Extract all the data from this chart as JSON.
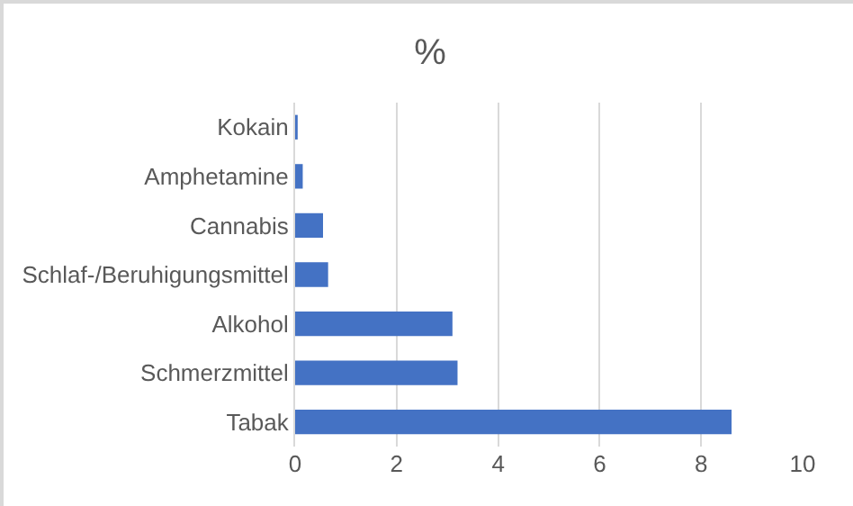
{
  "chart_data": {
    "type": "bar",
    "orientation": "horizontal",
    "title": "%",
    "categories": [
      "Kokain",
      "Amphetamine",
      "Cannabis",
      "Schlaf-/Beruhigungsmittel",
      "Alkohol",
      "Schmerzmittel",
      "Tabak"
    ],
    "values": [
      0.05,
      0.15,
      0.55,
      0.65,
      3.1,
      3.2,
      8.6
    ],
    "color": "#4472c4",
    "xlim": [
      0,
      10
    ],
    "xticks": [
      0,
      2,
      4,
      6,
      8,
      10
    ],
    "grid": "x"
  }
}
